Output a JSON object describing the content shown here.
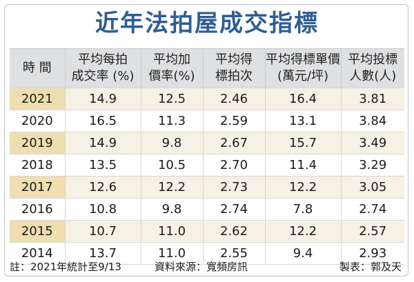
{
  "title": "近年法拍屋成交指標",
  "footer": {
    "note": "註：2021年統計至9/13",
    "source": "資料來源：寬頻房訊",
    "credit": "製表：郭及天"
  },
  "chart_data": {
    "type": "table",
    "title": "近年法拍屋成交指標",
    "columns": [
      "時 間",
      "平均每拍\n成交率 (%)",
      "平均加\n價率(%)",
      "平均得\n標拍次",
      "平均得標單價\n(萬元/坪)",
      "平均投標\n人數(人)"
    ],
    "rows": [
      [
        "2021",
        "14.9",
        "12.5",
        "2.46",
        "16.4",
        "3.81"
      ],
      [
        "2020",
        "16.5",
        "11.3",
        "2.59",
        "13.1",
        "3.84"
      ],
      [
        "2019",
        "14.9",
        "9.8",
        "2.67",
        "15.7",
        "3.49"
      ],
      [
        "2018",
        "13.5",
        "10.5",
        "2.70",
        "11.4",
        "3.29"
      ],
      [
        "2017",
        "12.6",
        "12.2",
        "2.73",
        "12.2",
        "3.05"
      ],
      [
        "2016",
        "10.8",
        "9.8",
        "2.74",
        "7.8",
        "2.74"
      ],
      [
        "2015",
        "10.7",
        "11.0",
        "2.62",
        "12.2",
        "2.57"
      ],
      [
        "2014",
        "13.7",
        "11.0",
        "2.55",
        "9.4",
        "2.93"
      ]
    ]
  }
}
